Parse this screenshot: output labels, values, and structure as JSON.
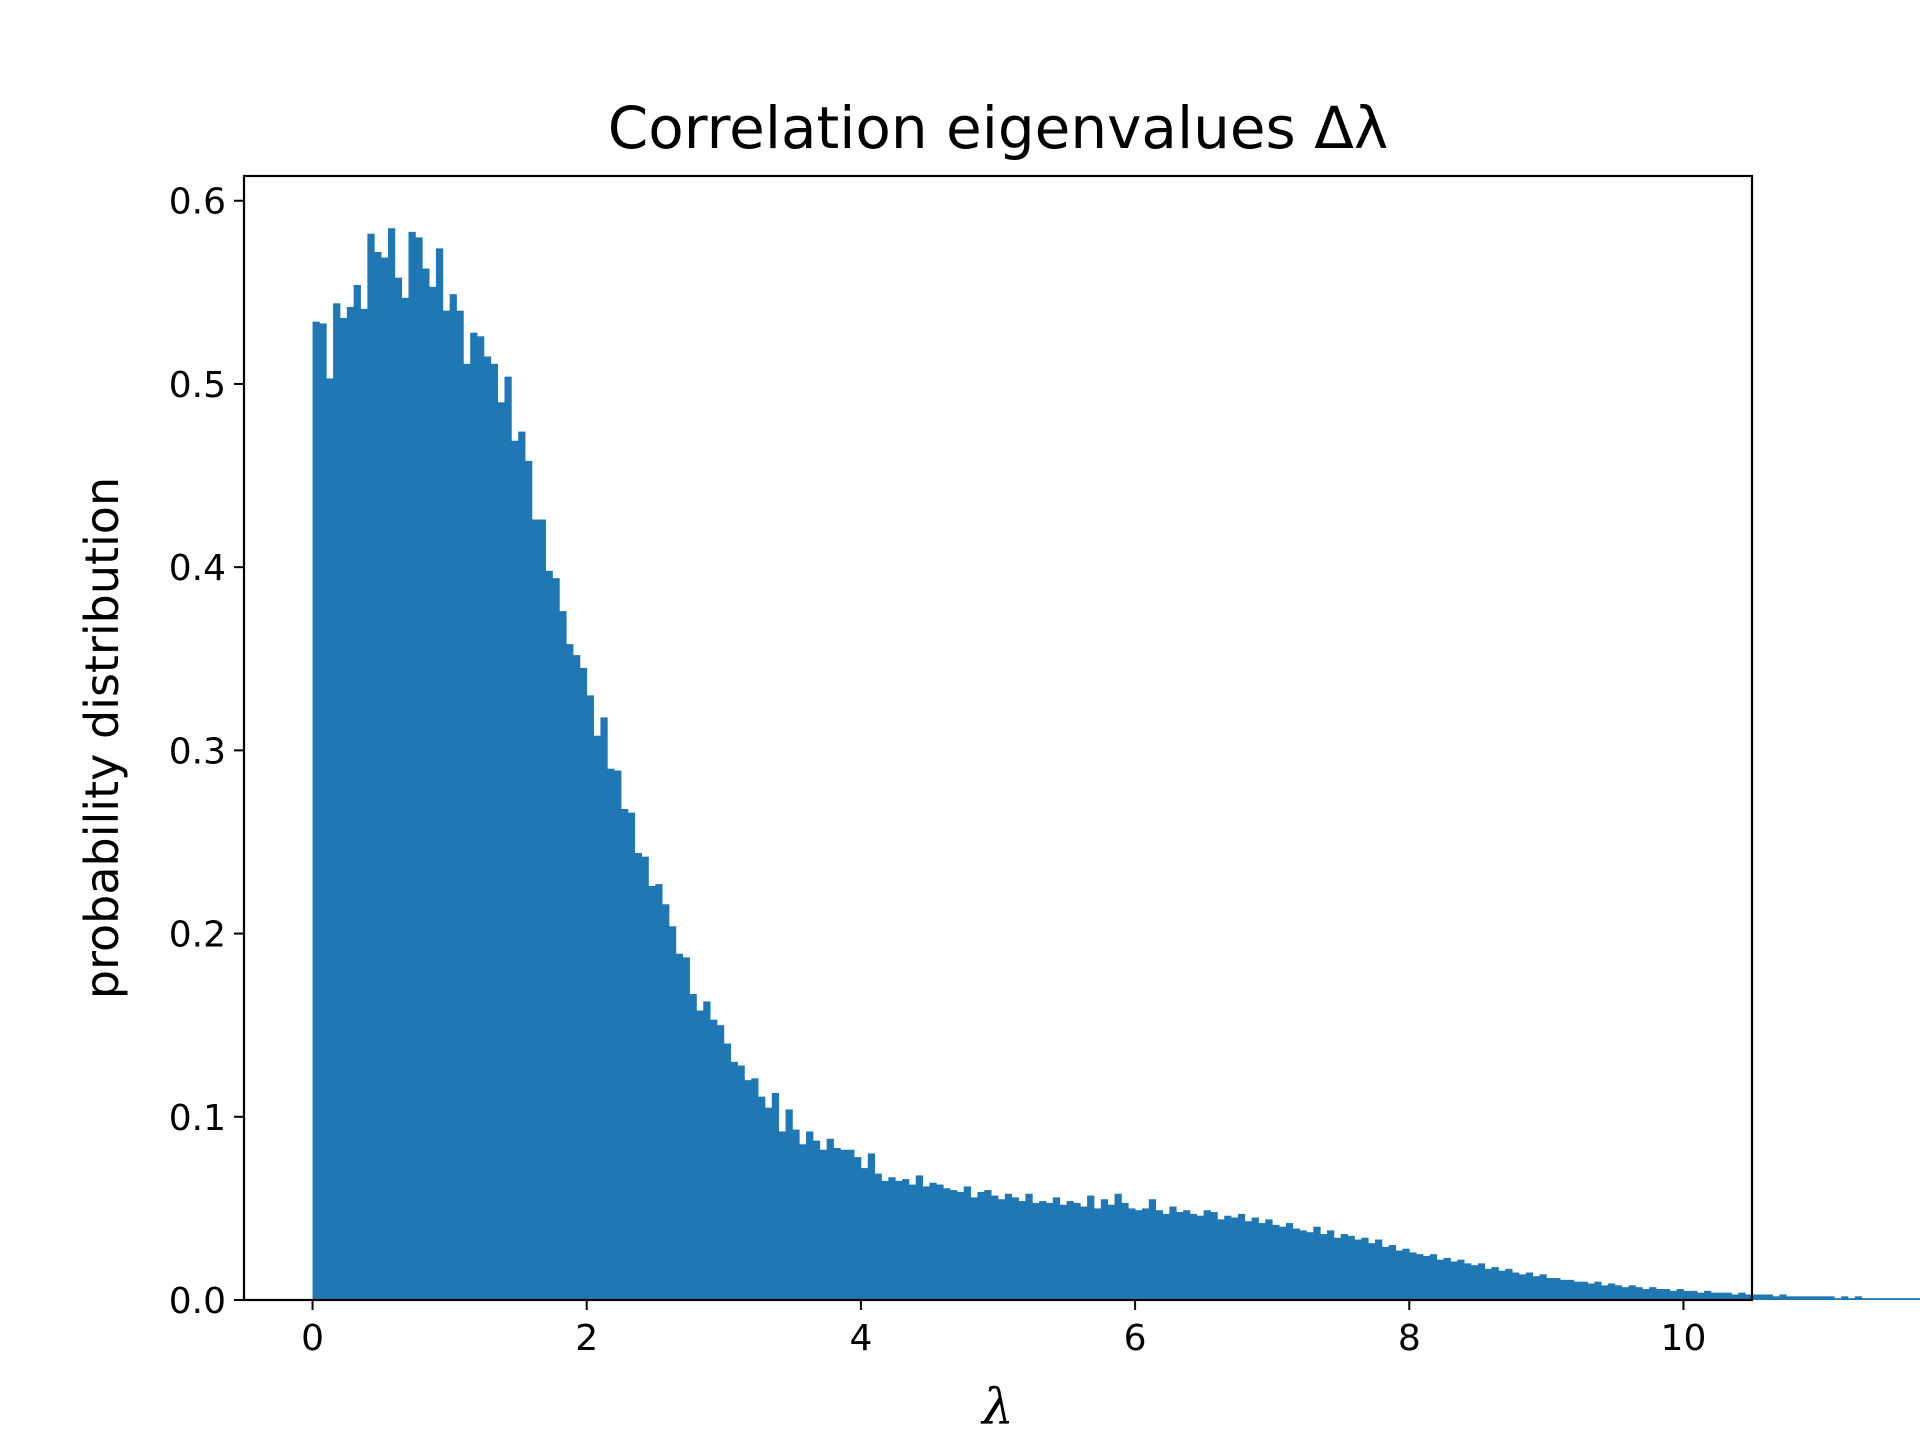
{
  "chart_data": {
    "type": "bar",
    "title": "Correlation eigenvalues Δλ",
    "xlabel": "λ",
    "ylabel": "probability distribution",
    "xlim": [
      -0.5,
      10.5
    ],
    "ylim": [
      0.0,
      0.6135
    ],
    "xticks": [
      "0",
      "2",
      "4",
      "6",
      "8",
      "10"
    ],
    "yticks": [
      "0.0",
      "0.1",
      "0.2",
      "0.3",
      "0.4",
      "0.5",
      "0.6"
    ],
    "grid": false,
    "bar_color": "#1f77b4",
    "bin_start": 0.0,
    "bin_width": 0.05,
    "values": [
      0.534,
      0.533,
      0.503,
      0.544,
      0.536,
      0.542,
      0.554,
      0.541,
      0.582,
      0.572,
      0.569,
      0.585,
      0.558,
      0.547,
      0.583,
      0.58,
      0.563,
      0.553,
      0.574,
      0.54,
      0.549,
      0.54,
      0.511,
      0.528,
      0.526,
      0.515,
      0.511,
      0.49,
      0.504,
      0.469,
      0.474,
      0.458,
      0.426,
      0.426,
      0.398,
      0.394,
      0.376,
      0.358,
      0.352,
      0.345,
      0.33,
      0.308,
      0.318,
      0.29,
      0.289,
      0.268,
      0.266,
      0.244,
      0.242,
      0.226,
      0.227,
      0.216,
      0.204,
      0.189,
      0.187,
      0.167,
      0.158,
      0.163,
      0.153,
      0.15,
      0.14,
      0.13,
      0.128,
      0.12,
      0.121,
      0.111,
      0.105,
      0.113,
      0.092,
      0.104,
      0.093,
      0.085,
      0.092,
      0.087,
      0.082,
      0.088,
      0.083,
      0.082,
      0.082,
      0.078,
      0.072,
      0.08,
      0.069,
      0.065,
      0.067,
      0.065,
      0.066,
      0.063,
      0.068,
      0.062,
      0.064,
      0.063,
      0.061,
      0.06,
      0.059,
      0.062,
      0.056,
      0.059,
      0.06,
      0.057,
      0.055,
      0.058,
      0.056,
      0.054,
      0.058,
      0.053,
      0.054,
      0.053,
      0.056,
      0.052,
      0.054,
      0.053,
      0.051,
      0.057,
      0.05,
      0.055,
      0.052,
      0.058,
      0.053,
      0.05,
      0.049,
      0.05,
      0.055,
      0.049,
      0.047,
      0.051,
      0.048,
      0.049,
      0.047,
      0.046,
      0.049,
      0.048,
      0.044,
      0.046,
      0.045,
      0.047,
      0.043,
      0.045,
      0.042,
      0.044,
      0.041,
      0.04,
      0.042,
      0.039,
      0.038,
      0.037,
      0.04,
      0.036,
      0.038,
      0.034,
      0.036,
      0.035,
      0.033,
      0.034,
      0.031,
      0.033,
      0.029,
      0.03,
      0.027,
      0.028,
      0.026,
      0.025,
      0.024,
      0.025,
      0.022,
      0.023,
      0.021,
      0.022,
      0.02,
      0.019,
      0.02,
      0.017,
      0.018,
      0.016,
      0.017,
      0.015,
      0.014,
      0.015,
      0.013,
      0.014,
      0.012,
      0.012,
      0.011,
      0.011,
      0.01,
      0.01,
      0.009,
      0.01,
      0.008,
      0.009,
      0.008,
      0.007,
      0.008,
      0.007,
      0.006,
      0.007,
      0.006,
      0.006,
      0.005,
      0.006,
      0.005,
      0.005,
      0.004,
      0.005,
      0.004,
      0.004,
      0.004,
      0.003,
      0.004,
      0.003,
      0.003,
      0.003,
      0.003,
      0.002,
      0.003,
      0.002,
      0.002,
      0.002,
      0.002,
      0.002,
      0.002,
      0.002,
      0.001,
      0.002,
      0.001,
      0.002,
      0.001,
      0.001,
      0.001,
      0.001,
      0.001,
      0.001,
      0.001,
      0.001,
      0.001,
      0.001,
      0.001,
      0.001,
      0.001,
      0.001,
      0.001,
      0.001,
      0.001,
      0.001,
      0.001,
      0.0005,
      0.001,
      0.0005,
      0.0005,
      0.0005,
      0.0005,
      0.0005,
      0.0005,
      0.0005,
      0.0005,
      0.0005,
      0.0005,
      0.0005,
      0.0005,
      0.0005,
      0.0005,
      0.0005,
      0.0003,
      0.0005,
      0.0003,
      0.0003,
      0.0003,
      0.0003,
      0.0003,
      0.0003,
      0.0003,
      0.0003,
      0.0003,
      0.0003,
      0.0003,
      0.0003,
      0.0003,
      0.0003,
      0.0003,
      0.0003,
      0.0002,
      0.0002,
      0.0002,
      0.0002,
      0.0002,
      0.0002,
      0.0002,
      0.0002,
      0.0002,
      0.0002,
      0.0002,
      0.0002,
      0.0002,
      0.0002,
      0.0002,
      0.0002,
      0.0002,
      0.0002,
      0.0002,
      0.0002,
      0.0001,
      0.0001,
      0.0001,
      0.0001,
      0.0001,
      0.0001,
      0.0001,
      0.0001,
      0.0001,
      0.0001,
      0.0001,
      0.0001,
      0.0001,
      0.0001,
      0.0001,
      0.0001,
      0.0001,
      0.0001,
      0.0001,
      0.0001,
      0.0001,
      0.0001,
      0.0001,
      0.0001,
      0.0001,
      0.0001,
      0.0001,
      0.0001,
      0.0001,
      0.0001,
      0.0001,
      0.0001,
      0.0001,
      0.0001,
      0.0001,
      0.0001,
      0.0001,
      0.0001,
      0.0001,
      0.0001,
      0.0001,
      0.0001,
      0.0001,
      0.0001,
      0.0001,
      0.0001,
      0.0001,
      0.0001,
      0.0001,
      0.0001,
      0.0001,
      0.0001,
      0.0001,
      0.0001,
      0.0001,
      0.0001,
      0.0001,
      0.0001,
      0.0001,
      0.0001,
      0.0001,
      0.0001,
      0.0001,
      0.0001,
      0.0001,
      0.0001,
      0.0001,
      0.0001,
      0.0001,
      0.0001,
      0.0001,
      0.0001,
      0.0001,
      0.0001,
      0.0001,
      0.0001,
      0.0001,
      0.0001,
      0.0001,
      0.0001
    ]
  }
}
